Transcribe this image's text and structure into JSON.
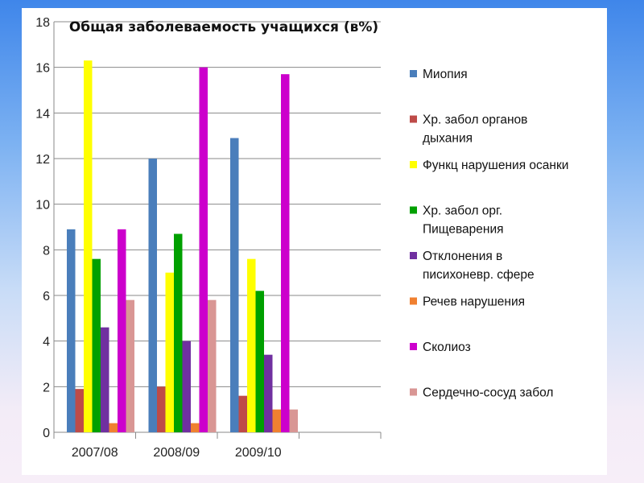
{
  "chart_data": {
    "type": "bar",
    "title": "Общая заболеваемость учащихся   (в%)",
    "xlabel": "",
    "ylabel": "",
    "ylim": [
      0,
      18
    ],
    "yticks": [
      0,
      2,
      4,
      6,
      8,
      10,
      12,
      14,
      16,
      18
    ],
    "grid": "horizontal",
    "legend_position": "right",
    "categories": [
      "2007/08",
      "2008/09",
      "2009/10",
      ""
    ],
    "series": [
      {
        "name": "Миопия",
        "name_lines": [
          "Миопия"
        ],
        "color": "#4a7ebb",
        "values": [
          8.9,
          12.0,
          12.9,
          null
        ]
      },
      {
        "name": "Хр. забол органов дыхания",
        "name_lines": [
          "Хр. забол органов",
          "дыхания"
        ],
        "color": "#be4b48",
        "values": [
          1.9,
          2.0,
          1.6,
          null
        ]
      },
      {
        "name": "Функц нарушения осанки",
        "name_lines": [
          "Функц нарушения осанки"
        ],
        "color": "#ffff00",
        "values": [
          16.3,
          7.0,
          7.6,
          null
        ]
      },
      {
        "name": "Хр. забол орг. Пищеварения",
        "name_lines": [
          "Хр. забол орг.",
          "Пищеварения"
        ],
        "color": "#00a000",
        "values": [
          7.6,
          8.7,
          6.2,
          null
        ]
      },
      {
        "name": "Отклонения в писихоневр. сфере",
        "name_lines": [
          "Отклонения в",
          "писихоневр. сфере"
        ],
        "color": "#7030a0",
        "values": [
          4.6,
          4.0,
          3.4,
          null
        ]
      },
      {
        "name": "Речев нарушения",
        "name_lines": [
          "Речев нарушения"
        ],
        "color": "#f08030",
        "values": [
          0.4,
          0.4,
          1.0,
          null
        ]
      },
      {
        "name": "Сколиоз",
        "name_lines": [
          "Сколиоз"
        ],
        "color": "#cc00cc",
        "values": [
          8.9,
          16.0,
          15.7,
          null
        ]
      },
      {
        "name": "Сердечно-сосуд забол",
        "name_lines": [
          "Сердечно-сосуд забол"
        ],
        "color": "#d99694",
        "values": [
          5.8,
          5.8,
          1.0,
          null
        ]
      }
    ]
  }
}
